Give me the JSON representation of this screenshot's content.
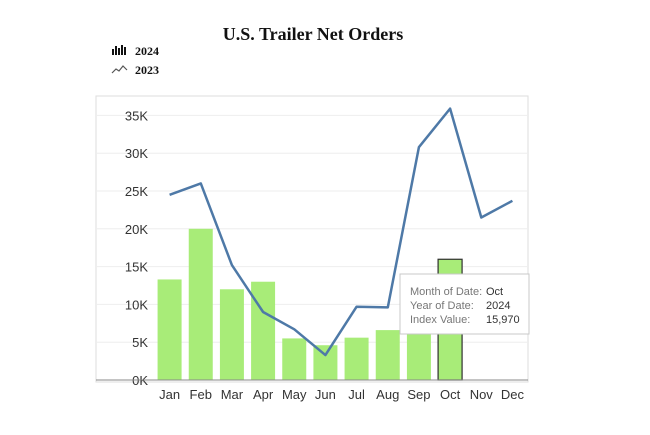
{
  "chart_data": {
    "type": "bar",
    "title": "U.S. Trailer Net Orders",
    "xlabel": "",
    "ylabel": "",
    "categories": [
      "Jan",
      "Feb",
      "Mar",
      "Apr",
      "May",
      "Jun",
      "Jul",
      "Aug",
      "Sep",
      "Oct",
      "Nov",
      "Dec"
    ],
    "y_ticks": [
      "0K",
      "5K",
      "10K",
      "15K",
      "20K",
      "25K",
      "30K",
      "35K"
    ],
    "ylim": [
      0,
      36000
    ],
    "grid": true,
    "legend_position": "top-left",
    "series": [
      {
        "name": "2024",
        "type": "bar",
        "color": "#a8ec78",
        "values": [
          13300,
          20000,
          12000,
          13000,
          5500,
          4600,
          5600,
          6600,
          6100,
          15970,
          null,
          null
        ]
      },
      {
        "name": "2023",
        "type": "line",
        "color": "#4e79a7",
        "values": [
          24500,
          26000,
          15200,
          9000,
          6700,
          3300,
          9700,
          9600,
          30800,
          35900,
          21500,
          23700
        ]
      }
    ],
    "highlighted": {
      "category_index": 9,
      "tooltip": {
        "rows": [
          {
            "label": "Month of Date:",
            "value": "Oct"
          },
          {
            "label": "Year of Date:",
            "value": "2024"
          },
          {
            "label": "Index Value:",
            "value": "15,970"
          }
        ]
      }
    }
  }
}
